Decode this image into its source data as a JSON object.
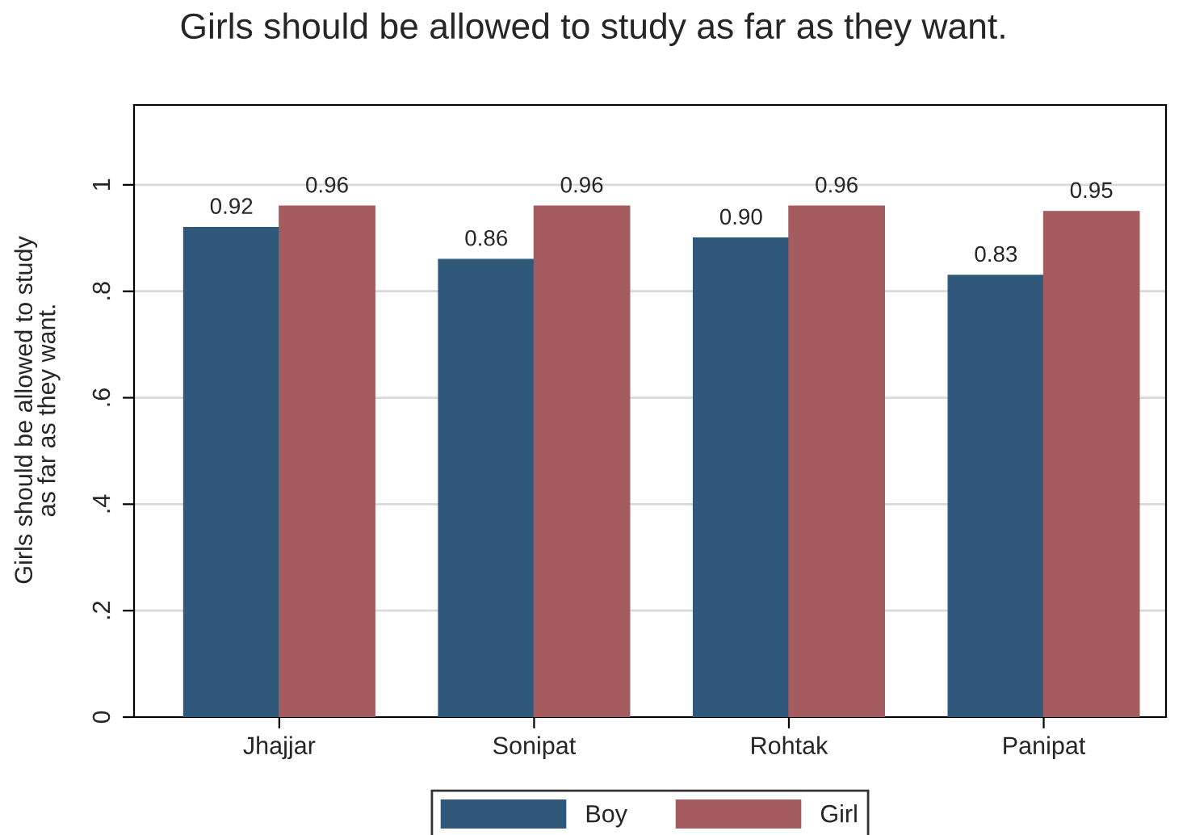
{
  "chart_data": {
    "type": "bar",
    "title": "Girls should be allowed to study as far as they want.",
    "ylabel": "Girls should be allowed to study as far as they want.",
    "categories": [
      "Jhajjar",
      "Sonipat",
      "Rohtak",
      "Panipat"
    ],
    "series": [
      {
        "name": "Boy",
        "color": "#2f587b",
        "values": [
          0.92,
          0.86,
          0.9,
          0.83
        ],
        "value_labels": [
          "0.92",
          "0.86",
          "0.90",
          "0.83"
        ]
      },
      {
        "name": "Girl",
        "color": "#a45c5f",
        "values": [
          0.96,
          0.96,
          0.96,
          0.95
        ],
        "value_labels": [
          "0.96",
          "0.96",
          "0.96",
          "0.95"
        ]
      }
    ],
    "ylim": [
      0,
      1.15
    ],
    "yticks": [
      {
        "value": 0,
        "label": "0"
      },
      {
        "value": 0.2,
        "label": ".2"
      },
      {
        "value": 0.4,
        "label": ".4"
      },
      {
        "value": 0.6,
        "label": ".6"
      },
      {
        "value": 0.8,
        "label": ".8"
      },
      {
        "value": 1,
        "label": "1"
      }
    ],
    "grid": "y",
    "legend": "bottom"
  }
}
